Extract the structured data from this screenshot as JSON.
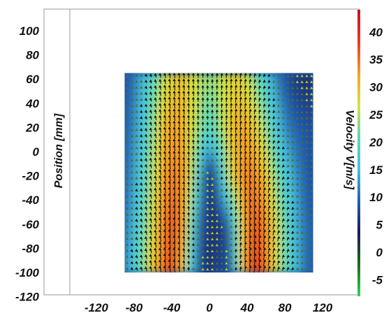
{
  "chart_data": {
    "type": "heatmap",
    "title": "",
    "xlabel": "",
    "ylabel": "Position [mm]",
    "colorbar_label": "Velocity V[m/s]",
    "x_ticks": [
      "-120",
      "-80",
      "-40",
      "0",
      "40",
      "80",
      "120"
    ],
    "y_ticks": [
      "100",
      "80",
      "60",
      "40",
      "20",
      "0",
      "-20",
      "-40",
      "-60",
      "-80",
      "-100",
      "-120"
    ],
    "colorbar_ticks": [
      "40",
      "35",
      "30",
      "25",
      "20",
      "15",
      "10",
      "5",
      "0",
      "-5"
    ],
    "xlim": [
      -120,
      120
    ],
    "ylim": [
      -120,
      120
    ],
    "colorbar_range": [
      -8,
      42
    ],
    "field_extent": {
      "x": [
        -90,
        110
      ],
      "y": [
        -100,
        65
      ]
    },
    "colormap": [
      "#2ed84f",
      "#1a6b1a",
      "#1a1a55",
      "#1e5fb8",
      "#46c3e0",
      "#58d8b8",
      "#d8e23a",
      "#f7a021",
      "#e83a1e",
      "#c8102e"
    ],
    "series": [
      {
        "x": [
          -90,
          -80,
          -70,
          -60,
          -50,
          -40,
          -30,
          -20,
          -10,
          0,
          10,
          20,
          30,
          40,
          50,
          60,
          70,
          80,
          90,
          100,
          110
        ],
        "y": -100,
        "velocity": [
          12,
          16,
          22,
          28,
          33,
          36,
          30,
          16,
          6,
          4,
          8,
          4,
          20,
          34,
          37,
          33,
          26,
          20,
          15,
          10,
          8
        ]
      },
      {
        "x": [
          -90,
          -80,
          -70,
          -60,
          -50,
          -40,
          -30,
          -20,
          -10,
          0,
          10,
          20,
          30,
          40,
          50,
          60,
          70,
          80,
          90,
          100,
          110
        ],
        "y": -60,
        "velocity": [
          10,
          14,
          20,
          26,
          32,
          35,
          33,
          20,
          8,
          5,
          5,
          8,
          22,
          33,
          35,
          32,
          26,
          20,
          14,
          10,
          8
        ]
      },
      {
        "x": [
          -90,
          -80,
          -70,
          -60,
          -50,
          -40,
          -30,
          -20,
          -10,
          0,
          10,
          20,
          30,
          40,
          50,
          60,
          70,
          80,
          90,
          100,
          110
        ],
        "y": -20,
        "velocity": [
          9,
          12,
          18,
          24,
          30,
          33,
          32,
          26,
          14,
          2,
          12,
          24,
          30,
          33,
          32,
          28,
          22,
          16,
          12,
          9,
          7
        ]
      },
      {
        "x": [
          -90,
          -80,
          -70,
          -60,
          -50,
          -40,
          -30,
          -20,
          -10,
          0,
          10,
          20,
          30,
          40,
          50,
          60,
          70,
          80,
          90,
          100,
          110
        ],
        "y": 20,
        "velocity": [
          8,
          11,
          16,
          22,
          28,
          31,
          30,
          26,
          22,
          18,
          22,
          27,
          30,
          30,
          27,
          22,
          16,
          11,
          9,
          8,
          7
        ]
      },
      {
        "x": [
          -90,
          -80,
          -70,
          -60,
          -50,
          -40,
          -30,
          -20,
          -10,
          0,
          10,
          20,
          30,
          40,
          50,
          60,
          70,
          80,
          90,
          100,
          110
        ],
        "y": 60,
        "velocity": [
          7,
          10,
          14,
          19,
          24,
          27,
          28,
          26,
          24,
          22,
          24,
          26,
          27,
          25,
          21,
          16,
          11,
          8,
          6,
          5,
          4
        ]
      }
    ]
  }
}
